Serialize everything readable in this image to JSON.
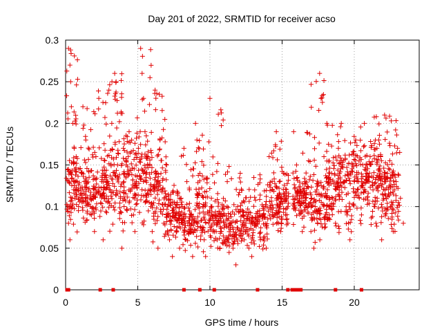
{
  "chart_data": {
    "type": "scatter",
    "title": "Day 201 of 2022, SRMTID for receiver acso",
    "xlabel": "GPS time / hours",
    "ylabel": "SRMTID / TECUs",
    "xlim": [
      0,
      24.5
    ],
    "ylim": [
      0,
      0.3
    ],
    "xticks": [
      0,
      5,
      10,
      15,
      20
    ],
    "yticks": [
      0,
      0.05,
      0.1,
      0.15,
      0.2,
      0.25,
      0.3
    ],
    "xtick_labels": [
      "0",
      "5",
      "10",
      "15",
      "20"
    ],
    "ytick_labels": [
      "0",
      "0.05",
      "0.1",
      "0.15",
      "0.2",
      "0.25",
      "0.3"
    ],
    "grid": true,
    "marker": "+",
    "color": "#e00000",
    "series": [
      {
        "name": "SRMTID",
        "envelope_note": "approximate per-hour spread of the dense point cloud",
        "hourly_profile": [
          {
            "hour": 0,
            "low": 0.06,
            "mid": 0.12,
            "high": 0.29
          },
          {
            "hour": 1,
            "low": 0.06,
            "mid": 0.12,
            "high": 0.22
          },
          {
            "hour": 2,
            "low": 0.07,
            "mid": 0.12,
            "high": 0.24
          },
          {
            "hour": 3,
            "low": 0.05,
            "mid": 0.13,
            "high": 0.26
          },
          {
            "hour": 4,
            "low": 0.06,
            "mid": 0.13,
            "high": 0.21
          },
          {
            "hour": 5,
            "low": 0.06,
            "mid": 0.13,
            "high": 0.29
          },
          {
            "hour": 6,
            "low": 0.05,
            "mid": 0.11,
            "high": 0.24
          },
          {
            "hour": 7,
            "low": 0.04,
            "mid": 0.09,
            "high": 0.15
          },
          {
            "hour": 8,
            "low": 0.04,
            "mid": 0.08,
            "high": 0.17
          },
          {
            "hour": 9,
            "low": 0.04,
            "mid": 0.1,
            "high": 0.2
          },
          {
            "hour": 10,
            "low": 0.04,
            "mid": 0.08,
            "high": 0.23
          },
          {
            "hour": 11,
            "low": 0.03,
            "mid": 0.07,
            "high": 0.15
          },
          {
            "hour": 12,
            "low": 0.04,
            "mid": 0.08,
            "high": 0.14
          },
          {
            "hour": 13,
            "low": 0.04,
            "mid": 0.08,
            "high": 0.14
          },
          {
            "hour": 14,
            "low": 0.05,
            "mid": 0.1,
            "high": 0.19
          },
          {
            "hour": 15,
            "low": 0.07,
            "mid": 0.11,
            "high": 0.15
          },
          {
            "hour": 16,
            "low": 0.07,
            "mid": 0.11,
            "high": 0.19
          },
          {
            "hour": 17,
            "low": 0.05,
            "mid": 0.1,
            "high": 0.26
          },
          {
            "hour": 18,
            "low": 0.05,
            "mid": 0.12,
            "high": 0.2
          },
          {
            "hour": 19,
            "low": 0.05,
            "mid": 0.12,
            "high": 0.2
          },
          {
            "hour": 20,
            "low": 0.07,
            "mid": 0.13,
            "high": 0.2
          },
          {
            "hour": 21,
            "low": 0.06,
            "mid": 0.13,
            "high": 0.21
          },
          {
            "hour": 22,
            "low": 0.05,
            "mid": 0.12,
            "high": 0.21
          },
          {
            "hour": 23,
            "low": 0.07,
            "mid": 0.11,
            "high": 0.17
          }
        ],
        "points": [
          [
            0.2,
            0.29
          ],
          [
            0.3,
            0.27
          ],
          [
            0.35,
            0.25
          ],
          [
            0.4,
            0.22
          ],
          [
            0.5,
            0.2
          ],
          [
            0.6,
            0.17
          ],
          [
            0.8,
            0.13
          ],
          [
            0.9,
            0.1
          ],
          [
            0.2,
            0.08
          ],
          [
            0.3,
            0.06
          ],
          [
            1.2,
            0.22
          ],
          [
            1.4,
            0.18
          ],
          [
            1.6,
            0.12
          ],
          [
            1.8,
            0.09
          ],
          [
            2.0,
            0.07
          ],
          [
            2.1,
            0.16
          ],
          [
            2.3,
            0.23
          ],
          [
            2.5,
            0.13
          ],
          [
            2.6,
            0.06
          ],
          [
            3.0,
            0.24
          ],
          [
            3.2,
            0.2
          ],
          [
            3.4,
            0.26
          ],
          [
            3.5,
            0.25
          ],
          [
            3.6,
            0.15
          ],
          [
            3.8,
            0.11
          ],
          [
            3.9,
            0.05
          ],
          [
            4.0,
            0.17
          ],
          [
            4.2,
            0.15
          ],
          [
            4.4,
            0.19
          ],
          [
            4.5,
            0.12
          ],
          [
            4.7,
            0.09
          ],
          [
            4.8,
            0.07
          ],
          [
            4.9,
            0.13
          ],
          [
            5.2,
            0.29
          ],
          [
            5.3,
            0.26
          ],
          [
            5.4,
            0.23
          ],
          [
            5.5,
            0.19
          ],
          [
            5.7,
            0.16
          ],
          [
            5.9,
            0.1
          ],
          [
            6.0,
            0.07
          ],
          [
            6.2,
            0.24
          ],
          [
            6.3,
            0.14
          ],
          [
            6.4,
            0.05
          ],
          [
            6.6,
            0.12
          ],
          [
            6.8,
            0.08
          ],
          [
            7.0,
            0.15
          ],
          [
            7.2,
            0.06
          ],
          [
            7.4,
            0.04
          ],
          [
            7.7,
            0.07
          ],
          [
            7.9,
            0.05
          ],
          [
            8.0,
            0.11
          ],
          [
            8.2,
            0.17
          ],
          [
            8.4,
            0.13
          ],
          [
            8.6,
            0.07
          ],
          [
            8.8,
            0.04
          ],
          [
            9.0,
            0.2
          ],
          [
            9.1,
            0.18
          ],
          [
            9.3,
            0.14
          ],
          [
            9.5,
            0.1
          ],
          [
            9.6,
            0.06
          ],
          [
            9.7,
            0.04
          ],
          [
            9.9,
            0.08
          ],
          [
            10.0,
            0.23
          ],
          [
            10.1,
            0.11
          ],
          [
            10.3,
            0.08
          ],
          [
            10.5,
            0.06
          ],
          [
            10.7,
            0.05
          ],
          [
            10.8,
            0.07
          ],
          [
            11.0,
            0.09
          ],
          [
            11.2,
            0.13
          ],
          [
            11.4,
            0.08
          ],
          [
            11.6,
            0.05
          ],
          [
            11.8,
            0.03
          ],
          [
            11.9,
            0.06
          ],
          [
            12.1,
            0.14
          ],
          [
            12.3,
            0.09
          ],
          [
            12.5,
            0.07
          ],
          [
            12.7,
            0.05
          ],
          [
            12.9,
            0.04
          ],
          [
            13.1,
            0.12
          ],
          [
            13.3,
            0.08
          ],
          [
            13.5,
            0.06
          ],
          [
            13.7,
            0.1
          ],
          [
            13.9,
            0.05
          ],
          [
            14.1,
            0.16
          ],
          [
            14.3,
            0.12
          ],
          [
            14.5,
            0.09
          ],
          [
            14.6,
            0.19
          ],
          [
            14.8,
            0.13
          ],
          [
            14.9,
            0.07
          ],
          [
            15.1,
            0.14
          ],
          [
            15.3,
            0.11
          ],
          [
            15.4,
            0.08
          ],
          [
            15.8,
            0.19
          ],
          [
            16.0,
            0.15
          ],
          [
            16.2,
            0.11
          ],
          [
            16.4,
            0.07
          ],
          [
            16.6,
            0.13
          ],
          [
            16.8,
            0.1
          ],
          [
            17.0,
            0.07
          ],
          [
            17.2,
            0.05
          ],
          [
            17.4,
            0.12
          ],
          [
            17.6,
            0.26
          ],
          [
            17.7,
            0.23
          ],
          [
            17.9,
            0.16
          ],
          [
            18.1,
            0.2
          ],
          [
            18.3,
            0.14
          ],
          [
            18.5,
            0.11
          ],
          [
            18.7,
            0.08
          ],
          [
            18.9,
            0.17
          ],
          [
            19.1,
            0.2
          ],
          [
            19.3,
            0.13
          ],
          [
            19.5,
            0.09
          ],
          [
            19.7,
            0.06
          ],
          [
            19.9,
            0.15
          ],
          [
            20.1,
            0.18
          ],
          [
            20.3,
            0.13
          ],
          [
            20.5,
            0.09
          ],
          [
            20.7,
            0.2
          ],
          [
            20.9,
            0.15
          ],
          [
            21.1,
            0.16
          ],
          [
            21.3,
            0.12
          ],
          [
            21.5,
            0.08
          ],
          [
            21.7,
            0.18
          ],
          [
            21.9,
            0.06
          ],
          [
            22.1,
            0.21
          ],
          [
            22.3,
            0.14
          ],
          [
            22.5,
            0.1
          ],
          [
            22.7,
            0.07
          ],
          [
            22.9,
            0.13
          ],
          [
            23.0,
            0.17
          ],
          [
            23.2,
            0.11
          ],
          [
            23.4,
            0.08
          ]
        ],
        "zero_values_at_hours": [
          0.1,
          0.2,
          2.4,
          3.3,
          8.2,
          9.3,
          10.3,
          13.3,
          15.4,
          15.7,
          15.9,
          16.1,
          16.3,
          18.7,
          20.5
        ]
      }
    ]
  }
}
